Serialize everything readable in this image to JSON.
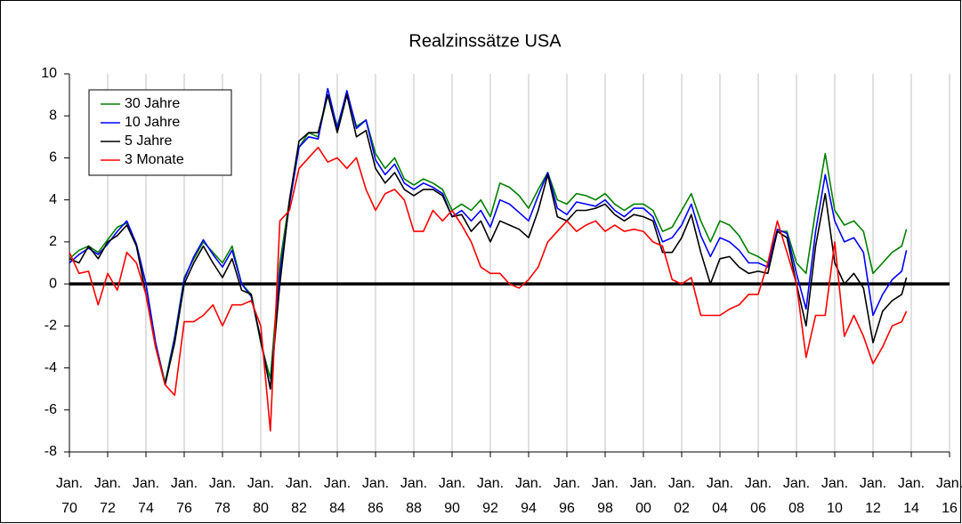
{
  "chart_data": {
    "type": "line",
    "title": "Realzinssätze USA",
    "x": [
      1970,
      1970.5,
      1971,
      1971.5,
      1972,
      1972.5,
      1973,
      1973.5,
      1974,
      1974.5,
      1975,
      1975.5,
      1976,
      1976.5,
      1977,
      1977.5,
      1978,
      1978.5,
      1979,
      1979.5,
      1980,
      1980.5,
      1981,
      1981.5,
      1982,
      1982.5,
      1983,
      1983.5,
      1984,
      1984.5,
      1985,
      1985.5,
      1986,
      1986.5,
      1987,
      1987.5,
      1988,
      1988.5,
      1989,
      1989.5,
      1990,
      1990.5,
      1991,
      1991.5,
      1992,
      1992.5,
      1993,
      1993.5,
      1994,
      1994.5,
      1995,
      1995.5,
      1996,
      1996.5,
      1997,
      1997.5,
      1998,
      1998.5,
      1999,
      1999.5,
      2000,
      2000.5,
      2001,
      2001.5,
      2002,
      2002.5,
      2003,
      2003.5,
      2004,
      2004.5,
      2005,
      2005.5,
      2006,
      2006.5,
      2007,
      2007.5,
      2008,
      2008.5,
      2009,
      2009.5,
      2010,
      2010.5,
      2011,
      2011.5,
      2012,
      2012.5,
      2013,
      2013.5,
      2013.75
    ],
    "series": [
      {
        "name": "30 Jahre",
        "color": "#008000",
        "values": [
          1.2,
          1.6,
          1.8,
          1.5,
          2.1,
          2.7,
          2.9,
          1.8,
          0.0,
          -2.8,
          -4.7,
          -2.5,
          0.3,
          1.2,
          2.0,
          1.5,
          1.0,
          1.8,
          0.0,
          -0.5,
          -2.8,
          -4.5,
          1.0,
          4.0,
          6.5,
          7.2,
          7.0,
          9.0,
          7.5,
          9.1,
          7.5,
          7.8,
          6.2,
          5.5,
          6.0,
          5.0,
          4.7,
          5.0,
          4.8,
          4.5,
          3.5,
          3.8,
          3.5,
          4.0,
          3.2,
          4.8,
          4.6,
          4.2,
          3.6,
          4.5,
          5.3,
          4.0,
          3.8,
          4.3,
          4.2,
          4.0,
          4.3,
          3.8,
          3.5,
          3.8,
          3.8,
          3.5,
          2.5,
          2.7,
          3.5,
          4.3,
          3.0,
          2.0,
          3.0,
          2.8,
          2.3,
          1.5,
          1.3,
          1.0,
          2.5,
          2.5,
          1.0,
          0.5,
          3.5,
          6.2,
          3.5,
          2.8,
          3.0,
          2.5,
          0.5,
          1.0,
          1.5,
          1.8,
          2.6
        ]
      },
      {
        "name": "10 Jahre",
        "color": "#0000ff",
        "values": [
          1.0,
          1.4,
          1.7,
          1.4,
          1.9,
          2.5,
          3.0,
          1.9,
          0.0,
          -2.8,
          -4.8,
          -2.6,
          0.2,
          1.3,
          2.1,
          1.4,
          0.8,
          1.6,
          0.0,
          -0.6,
          -2.6,
          -5.0,
          0.5,
          3.8,
          6.5,
          7.0,
          6.9,
          9.3,
          7.4,
          9.2,
          7.4,
          7.8,
          5.9,
          5.2,
          5.7,
          4.8,
          4.5,
          4.8,
          4.6,
          4.3,
          3.2,
          3.5,
          3.0,
          3.5,
          2.7,
          4.0,
          3.8,
          3.4,
          3.0,
          4.2,
          5.3,
          3.6,
          3.3,
          3.9,
          3.8,
          3.7,
          4.0,
          3.5,
          3.2,
          3.6,
          3.6,
          3.2,
          2.0,
          2.2,
          2.8,
          3.8,
          2.3,
          1.3,
          2.2,
          2.0,
          1.6,
          1.0,
          1.0,
          0.8,
          2.6,
          2.4,
          0.5,
          -1.2,
          2.5,
          5.2,
          3.0,
          2.0,
          2.2,
          1.5,
          -1.5,
          -0.5,
          0.2,
          0.6,
          1.6
        ]
      },
      {
        "name": "5 Jahre",
        "color": "#000000",
        "values": [
          1.2,
          1.0,
          1.8,
          1.2,
          2.0,
          2.3,
          2.8,
          1.8,
          -0.5,
          -3.0,
          -4.8,
          -2.8,
          0.0,
          1.0,
          1.8,
          1.0,
          0.3,
          1.2,
          -0.3,
          -0.5,
          -2.7,
          -5.0,
          0.0,
          4.0,
          6.8,
          7.2,
          7.2,
          9.0,
          7.2,
          9.0,
          7.0,
          7.3,
          5.5,
          4.8,
          5.3,
          4.5,
          4.2,
          4.5,
          4.5,
          4.2,
          3.2,
          3.3,
          2.5,
          3.0,
          2.0,
          3.0,
          2.8,
          2.6,
          2.2,
          3.5,
          5.2,
          3.2,
          3.0,
          3.5,
          3.5,
          3.6,
          3.8,
          3.3,
          3.0,
          3.3,
          3.2,
          3.0,
          1.5,
          1.5,
          2.2,
          3.3,
          1.5,
          0.0,
          1.2,
          1.3,
          0.8,
          0.5,
          0.6,
          0.5,
          2.5,
          2.2,
          0.0,
          -2.0,
          1.8,
          4.3,
          1.0,
          0.0,
          0.5,
          -0.2,
          -2.8,
          -1.3,
          -0.8,
          -0.5,
          0.3
        ]
      },
      {
        "name": "3 Monate",
        "color": "#ff0000",
        "values": [
          1.5,
          0.5,
          0.6,
          -1.0,
          0.5,
          -0.3,
          1.5,
          1.0,
          -0.5,
          -3.0,
          -4.8,
          -5.3,
          -1.8,
          -1.8,
          -1.5,
          -1.0,
          -2.0,
          -1.0,
          -1.0,
          -0.8,
          -2.0,
          -7.0,
          3.0,
          3.5,
          5.5,
          6.0,
          6.5,
          5.8,
          6.0,
          5.5,
          6.0,
          4.5,
          3.5,
          4.3,
          4.5,
          4.0,
          2.5,
          2.5,
          3.5,
          3.0,
          3.5,
          2.8,
          2.0,
          0.8,
          0.5,
          0.5,
          0.0,
          -0.2,
          0.2,
          0.8,
          2.0,
          2.5,
          3.0,
          2.5,
          2.8,
          3.0,
          2.5,
          2.8,
          2.5,
          2.6,
          2.5,
          2.0,
          1.8,
          0.2,
          0.0,
          0.3,
          -1.5,
          -1.5,
          -1.5,
          -1.2,
          -1.0,
          -0.5,
          -0.5,
          1.0,
          3.0,
          1.5,
          0.0,
          -3.5,
          -1.5,
          -1.5,
          2.0,
          -2.5,
          -1.5,
          -2.5,
          -3.8,
          -3.0,
          -2.0,
          -1.8,
          -1.3
        ]
      }
    ],
    "xlim": [
      1970,
      2016
    ],
    "xticks": [
      {
        "value": 1970,
        "label": "Jan. 70"
      },
      {
        "value": 1972,
        "label": "Jan. 72"
      },
      {
        "value": 1974,
        "label": "Jan. 74"
      },
      {
        "value": 1976,
        "label": "Jan. 76"
      },
      {
        "value": 1978,
        "label": "Jan. 78"
      },
      {
        "value": 1980,
        "label": "Jan. 80"
      },
      {
        "value": 1982,
        "label": "Jan. 82"
      },
      {
        "value": 1984,
        "label": "Jan. 84"
      },
      {
        "value": 1986,
        "label": "Jan. 86"
      },
      {
        "value": 1988,
        "label": "Jan. 88"
      },
      {
        "value": 1990,
        "label": "Jan. 90"
      },
      {
        "value": 1992,
        "label": "Jan. 92"
      },
      {
        "value": 1994,
        "label": "Jan. 94"
      },
      {
        "value": 1996,
        "label": "Jan. 96"
      },
      {
        "value": 1998,
        "label": "Jan. 98"
      },
      {
        "value": 2000,
        "label": "Jan. 00"
      },
      {
        "value": 2002,
        "label": "Jan. 02"
      },
      {
        "value": 2004,
        "label": "Jan. 04"
      },
      {
        "value": 2006,
        "label": "Jan. 06"
      },
      {
        "value": 2008,
        "label": "Jan. 08"
      },
      {
        "value": 2010,
        "label": "Jan. 10"
      },
      {
        "value": 2012,
        "label": "Jan. 12"
      },
      {
        "value": 2014,
        "label": "Jan. 14"
      },
      {
        "value": 2016,
        "label": "Jan. 16"
      }
    ],
    "ylim": [
      -8,
      10
    ],
    "yticks": [
      -8,
      -6,
      -4,
      -2,
      0,
      2,
      4,
      6,
      8,
      10
    ],
    "grid": true,
    "legend": "upper left"
  }
}
